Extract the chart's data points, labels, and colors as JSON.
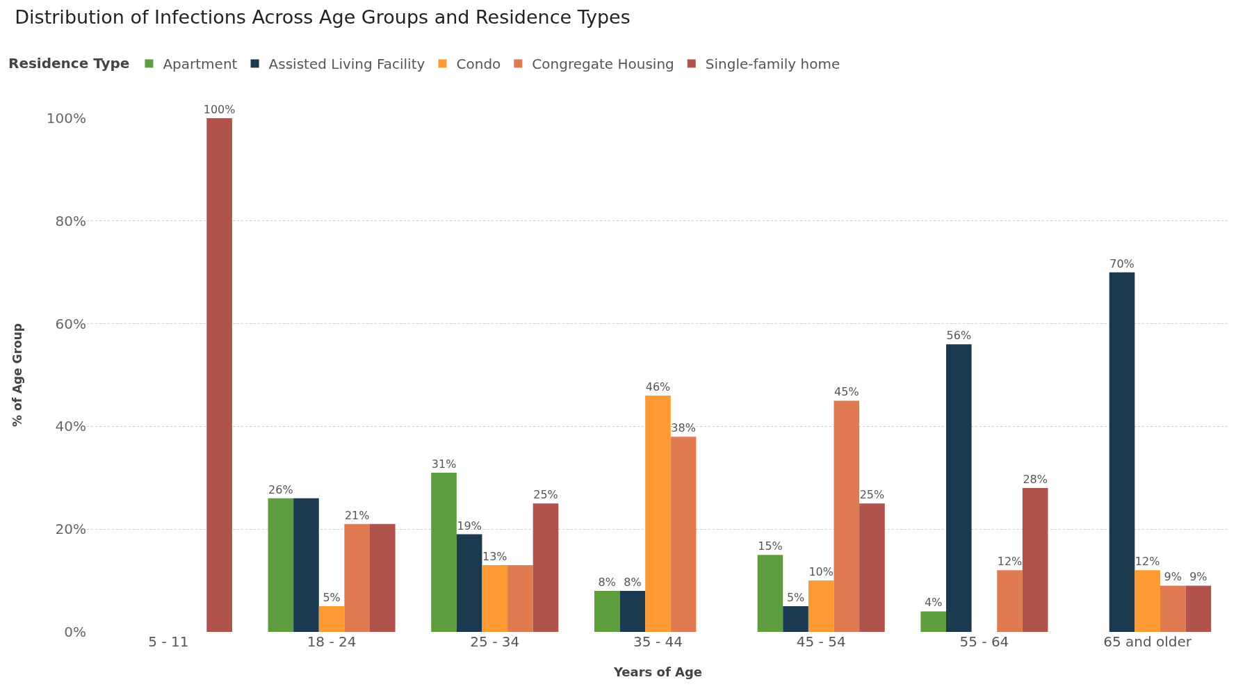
{
  "chart_data": {
    "type": "bar",
    "title": "Distribution of Infections Across Age Groups and Residence Types",
    "xlabel": "Years of Age",
    "ylabel": "% of Age Group",
    "legend_title": "Residence Type",
    "legend": "top left",
    "grid": "y",
    "categories": [
      "5 - 11",
      "18 - 24",
      "25 - 34",
      "35 - 44",
      "45 - 54",
      "55 - 64",
      "65 and older"
    ],
    "ylim": [
      0,
      100
    ],
    "yticks": [
      {
        "value": 0,
        "label": "0%"
      },
      {
        "value": 20,
        "label": "20%"
      },
      {
        "value": 40,
        "label": "40%"
      },
      {
        "value": 60,
        "label": "60%"
      },
      {
        "value": 80,
        "label": "80%"
      },
      {
        "value": 100,
        "label": "100%"
      }
    ],
    "series": [
      {
        "name": "Apartment",
        "color": "#5f9e3f",
        "values": [
          null,
          26,
          31,
          8,
          15,
          4,
          null
        ],
        "value_labels": [
          null,
          "26%",
          "31%",
          "8%",
          "15%",
          "4%",
          null
        ]
      },
      {
        "name": "Assisted Living Facility",
        "color": "#1b3a4f",
        "values": [
          null,
          26,
          19,
          8,
          5,
          56,
          70
        ],
        "value_labels": [
          null,
          null,
          "19%",
          "8%",
          "5%",
          "56%",
          "70%"
        ]
      },
      {
        "name": "Condo",
        "color": "#fd9a33",
        "values": [
          null,
          5,
          13,
          46,
          10,
          null,
          12
        ],
        "value_labels": [
          null,
          "5%",
          "13%",
          "46%",
          "10%",
          null,
          "12%"
        ]
      },
      {
        "name": "Congregate Housing",
        "color": "#e07b51",
        "values": [
          null,
          21,
          13,
          38,
          45,
          12,
          9
        ],
        "value_labels": [
          null,
          "21%",
          null,
          "38%",
          "45%",
          "12%",
          "9%"
        ]
      },
      {
        "name": "Single-family home",
        "color": "#b0534c",
        "values": [
          100,
          21,
          25,
          null,
          25,
          28,
          9
        ],
        "value_labels": [
          "100%",
          null,
          "25%",
          null,
          "25%",
          "28%",
          "9%"
        ]
      }
    ]
  }
}
